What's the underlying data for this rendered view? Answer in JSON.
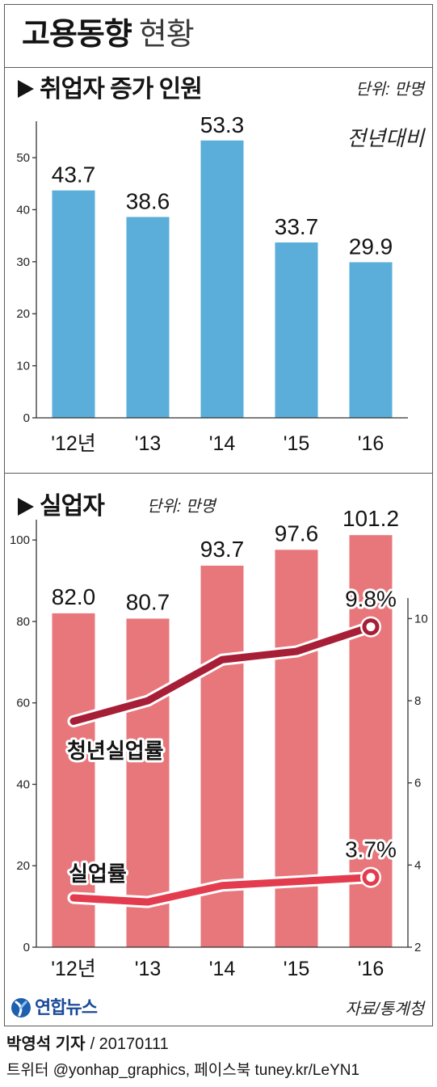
{
  "title": {
    "main": "고용동향",
    "sub": "현황"
  },
  "icons": {
    "section_marker": "triangle-right-icon",
    "logo": "yonhap-logo-icon"
  },
  "chart_data": [
    {
      "type": "bar",
      "title": "취업자 증가 인원",
      "subtitle": "전년대비",
      "unit": "단위: 만명",
      "categories": [
        "'12년",
        "'13",
        "'14",
        "'15",
        "'16"
      ],
      "values": [
        43.7,
        38.6,
        53.3,
        33.7,
        29.9
      ],
      "value_labels": [
        "43.7",
        "38.6",
        "53.3",
        "33.7",
        "29.9"
      ],
      "ylim": [
        0,
        57
      ],
      "yticks": [
        0,
        10,
        20,
        30,
        40,
        50
      ],
      "grid": false,
      "bar_color": "#5aaed9"
    },
    {
      "type": "bar",
      "title": "실업자",
      "unit": "단위: 만명",
      "categories": [
        "'12년",
        "'13",
        "'14",
        "'15",
        "'16"
      ],
      "values": [
        82.0,
        80.7,
        93.7,
        97.6,
        101.2
      ],
      "value_labels": [
        "82.0",
        "80.7",
        "93.7",
        "97.6",
        "101.2"
      ],
      "ylim": [
        0,
        105
      ],
      "yticks": [
        0,
        20,
        40,
        60,
        80,
        100
      ],
      "y2lim": [
        2,
        10.5
      ],
      "y2ticks": [
        2,
        4,
        6,
        8,
        10
      ],
      "grid": false,
      "bar_color": "#e8777c",
      "line_series": [
        {
          "name": "청년실업률",
          "type": "line",
          "axis": "right",
          "values": [
            7.5,
            8.0,
            9.0,
            9.2,
            9.8
          ],
          "end_label": "9.8%",
          "color": "#a71f37"
        },
        {
          "name": "실업률",
          "type": "line",
          "axis": "right",
          "values": [
            3.2,
            3.1,
            3.5,
            3.6,
            3.7
          ],
          "end_label": "3.7%",
          "color": "#e33c4e"
        }
      ]
    }
  ],
  "footer": {
    "logo_text": "연합뉴스",
    "source": "자료/통계청",
    "byline_reporter": "박영석 기자",
    "byline_date": "/ 20170111",
    "social": "트위터 @yonhap_graphics, 페이스북 tuney.kr/LeYN1"
  }
}
